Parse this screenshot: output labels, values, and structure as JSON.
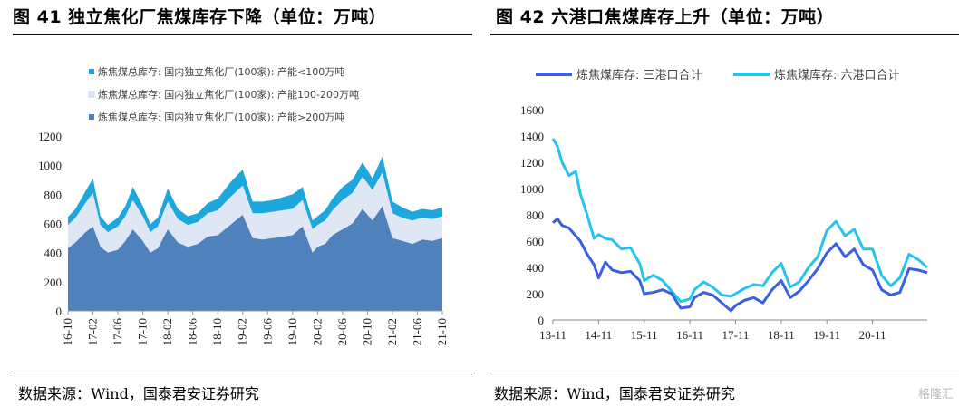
{
  "left": {
    "title": "图 41  独立焦化厂焦煤库存下降（单位：万吨）",
    "source": "数据来源：Wind，国泰君安证券研究",
    "chart_data": {
      "type": "area",
      "stacked": true,
      "ylim": [
        0,
        1200
      ],
      "yticks": [
        0,
        200,
        400,
        600,
        800,
        1000,
        1200
      ],
      "xticks": [
        "16-10",
        "17-02",
        "17-06",
        "17-10",
        "18-02",
        "18-06",
        "18-10",
        "19-02",
        "19-06",
        "19-10",
        "20-02",
        "20-06",
        "20-10",
        "21-02",
        "21-06",
        "21-10"
      ],
      "legend_position": "top",
      "series": [
        {
          "name": "炼焦煤总库存: 国内独立焦化厂(100家): 产能>200万吨",
          "color": "#4f81bd",
          "x": [
            0,
            0.3,
            0.7,
            1.0,
            1.3,
            1.6,
            2.0,
            2.3,
            2.6,
            3.0,
            3.3,
            3.6,
            4.0,
            4.4,
            4.8,
            5.2,
            5.6,
            6.0,
            6.5,
            7.0,
            7.4,
            7.8,
            8.2,
            8.6,
            9.0,
            9.4,
            9.8,
            10.0,
            10.3,
            10.6,
            11.0,
            11.4,
            11.8,
            12.2,
            12.6,
            13.0,
            13.4,
            13.8,
            14.2,
            14.6,
            15.0
          ],
          "values": [
            430,
            470,
            540,
            580,
            440,
            400,
            420,
            480,
            560,
            480,
            400,
            430,
            560,
            470,
            440,
            460,
            510,
            520,
            590,
            660,
            500,
            490,
            500,
            510,
            520,
            580,
            400,
            440,
            460,
            520,
            560,
            600,
            700,
            620,
            720,
            500,
            480,
            460,
            490,
            480,
            500
          ]
        },
        {
          "name": "炼焦煤总库存: 国内独立焦化厂(100家): 产能100-200万吨",
          "color": "#dfe6f4",
          "x": [
            0,
            0.3,
            0.7,
            1.0,
            1.3,
            1.6,
            2.0,
            2.3,
            2.6,
            3.0,
            3.3,
            3.6,
            4.0,
            4.4,
            4.8,
            5.2,
            5.6,
            6.0,
            6.5,
            7.0,
            7.4,
            7.8,
            8.2,
            8.6,
            9.0,
            9.4,
            9.8,
            10.0,
            10.3,
            10.6,
            11.0,
            11.4,
            11.8,
            12.2,
            12.6,
            13.0,
            13.4,
            13.8,
            14.2,
            14.6,
            15.0
          ],
          "values": [
            160,
            170,
            200,
            230,
            150,
            140,
            160,
            170,
            200,
            170,
            140,
            150,
            190,
            160,
            150,
            150,
            160,
            170,
            190,
            200,
            170,
            180,
            180,
            180,
            180,
            180,
            160,
            150,
            160,
            170,
            200,
            210,
            220,
            210,
            230,
            170,
            160,
            160,
            150,
            150,
            150
          ]
        },
        {
          "name": "炼焦煤总库存: 国内独立焦化厂(100家): 产能<100万吨",
          "color": "#1ea7dd",
          "x": [
            0,
            0.3,
            0.7,
            1.0,
            1.3,
            1.6,
            2.0,
            2.3,
            2.6,
            3.0,
            3.3,
            3.6,
            4.0,
            4.4,
            4.8,
            5.2,
            5.6,
            6.0,
            6.5,
            7.0,
            7.4,
            7.8,
            8.2,
            8.6,
            9.0,
            9.4,
            9.8,
            10.0,
            10.3,
            10.6,
            11.0,
            11.4,
            11.8,
            12.2,
            12.6,
            13.0,
            13.4,
            13.8,
            14.2,
            14.6,
            15.0
          ],
          "values": [
            55,
            60,
            80,
            100,
            60,
            50,
            60,
            70,
            90,
            70,
            55,
            60,
            90,
            70,
            60,
            60,
            70,
            80,
            100,
            110,
            80,
            80,
            80,
            90,
            100,
            90,
            60,
            60,
            70,
            80,
            90,
            90,
            100,
            80,
            110,
            80,
            70,
            60,
            60,
            60,
            60
          ]
        }
      ]
    }
  },
  "right": {
    "title": "图 42  六港口焦煤库存上升（单位：万吨）",
    "source": "数据来源：Wind，国泰君安证券研究",
    "chart_data": {
      "type": "line",
      "ylim": [
        0,
        1600
      ],
      "yticks": [
        0,
        200,
        400,
        600,
        800,
        1000,
        1200,
        1400,
        1600
      ],
      "xticks": [
        "13-11",
        "14-11",
        "15-11",
        "16-11",
        "17-11",
        "18-11",
        "19-11",
        "20-11"
      ],
      "legend_position": "top",
      "series": [
        {
          "name": "炼焦煤库存: 三港口合计",
          "color": "#3a5fe0",
          "x": [
            0,
            0.1,
            0.2,
            0.35,
            0.5,
            0.6,
            0.75,
            0.9,
            1.0,
            1.15,
            1.3,
            1.5,
            1.7,
            1.9,
            2.0,
            2.2,
            2.4,
            2.6,
            2.8,
            3.0,
            3.1,
            3.3,
            3.5,
            3.7,
            3.9,
            4.0,
            4.2,
            4.4,
            4.6,
            4.8,
            5.0,
            5.2,
            5.4,
            5.6,
            5.8,
            6.0,
            6.2,
            6.4,
            6.6,
            6.8,
            7.0,
            7.2,
            7.4,
            7.6,
            7.8,
            8.0,
            8.2
          ],
          "values": [
            740,
            770,
            720,
            700,
            640,
            600,
            500,
            420,
            320,
            440,
            380,
            360,
            370,
            300,
            200,
            210,
            230,
            200,
            90,
            100,
            170,
            210,
            190,
            130,
            70,
            110,
            150,
            170,
            130,
            230,
            300,
            170,
            220,
            300,
            390,
            510,
            580,
            480,
            540,
            420,
            380,
            230,
            190,
            210,
            390,
            380,
            360
          ]
        },
        {
          "name": "炼焦煤库存: 六港口合计",
          "color": "#25c4ec",
          "x": [
            0,
            0.1,
            0.2,
            0.35,
            0.5,
            0.6,
            0.75,
            0.9,
            1.0,
            1.15,
            1.3,
            1.5,
            1.7,
            1.9,
            2.0,
            2.2,
            2.4,
            2.6,
            2.8,
            3.0,
            3.1,
            3.3,
            3.5,
            3.7,
            3.9,
            4.0,
            4.2,
            4.4,
            4.6,
            4.8,
            5.0,
            5.2,
            5.4,
            5.6,
            5.8,
            6.0,
            6.2,
            6.4,
            6.6,
            6.8,
            7.0,
            7.2,
            7.4,
            7.6,
            7.8,
            8.0,
            8.2
          ],
          "values": [
            1380,
            1320,
            1200,
            1100,
            1130,
            960,
            800,
            620,
            650,
            620,
            610,
            540,
            550,
            430,
            300,
            340,
            300,
            220,
            140,
            160,
            230,
            290,
            250,
            190,
            180,
            200,
            240,
            270,
            260,
            360,
            430,
            250,
            290,
            400,
            480,
            680,
            750,
            640,
            690,
            540,
            540,
            340,
            260,
            320,
            500,
            460,
            400
          ]
        }
      ]
    }
  },
  "watermark": "格隆汇"
}
